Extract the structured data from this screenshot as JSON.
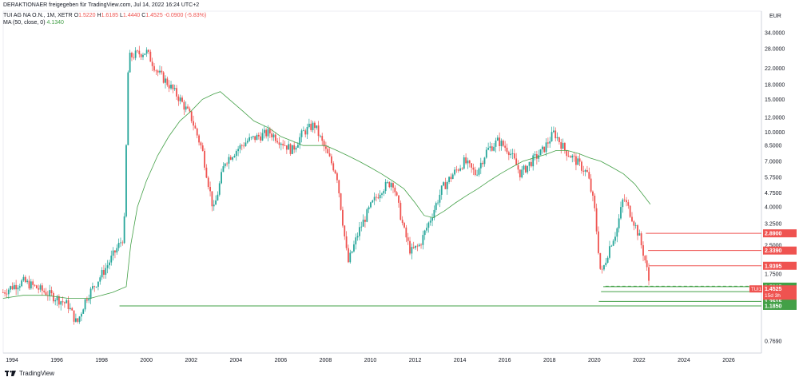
{
  "header": {
    "published": "DERAKTIONAER freigegeben für TradingView.com, Jul 14, 2022 16:24 UTC+2",
    "symbol": "TUI AG NA O.N., 1M, XETR",
    "o_label": "O",
    "o_value": "1.5220",
    "h_label": "H",
    "h_value": "1.6185",
    "l_label": "L",
    "l_value": "1.4440",
    "c_label": "C",
    "c_value": "1.4525",
    "change": "-0.0900 (-5.83%)",
    "ma_label": "MA (50, close, 0)",
    "ma_value": "4.1340"
  },
  "footer": {
    "brand": "TradingView"
  },
  "colors": {
    "up": "#26a69a",
    "down": "#ef5350",
    "ma": "#43a047",
    "red_line": "#ef5350",
    "green_line": "#43a047"
  },
  "chart_data": {
    "type": "candlestick",
    "currency": "EUR",
    "y_scale": "log",
    "ylim": [
      0.7,
      37
    ],
    "x_ticks": [
      "1994",
      "1996",
      "1998",
      "2000",
      "2002",
      "2004",
      "2006",
      "2008",
      "2010",
      "2012",
      "2014",
      "2016",
      "2018",
      "2020",
      "2022",
      "2024",
      "2026"
    ],
    "y_ticks": [
      34,
      28,
      22,
      18,
      15,
      12,
      10,
      8.5,
      7,
      5.75,
      4.75,
      4,
      3.25,
      2.5,
      1.75,
      0.769
    ],
    "y_tick_labels": [
      "34.0000",
      "28.0000",
      "22.0000",
      "18.0000",
      "15.0000",
      "12.0000",
      "10.0000",
      "8.5000",
      "7.0000",
      "5.7500",
      "4.7500",
      "4.0000",
      "3.2500",
      "2.5000",
      "1.7500",
      "0.7690"
    ],
    "ohlc_close_path": [
      [
        1993.6,
        1.4
      ],
      [
        1994.0,
        1.5
      ],
      [
        1994.5,
        1.6
      ],
      [
        1995.0,
        1.5
      ],
      [
        1995.5,
        1.4
      ],
      [
        1996.0,
        1.3
      ],
      [
        1996.5,
        1.2
      ],
      [
        1996.9,
        0.95
      ],
      [
        1997.3,
        1.3
      ],
      [
        1997.8,
        1.6
      ],
      [
        1998.2,
        1.9
      ],
      [
        1998.6,
        2.3
      ],
      [
        1999.0,
        2.8
      ],
      [
        1999.2,
        25
      ],
      [
        1999.5,
        26
      ],
      [
        2000.0,
        27
      ],
      [
        2000.5,
        21
      ],
      [
        2001.0,
        18
      ],
      [
        2001.5,
        15
      ],
      [
        2002.0,
        12
      ],
      [
        2002.5,
        8
      ],
      [
        2003.0,
        3.8
      ],
      [
        2003.5,
        7
      ],
      [
        2004.0,
        8
      ],
      [
        2004.5,
        9
      ],
      [
        2005.0,
        9.5
      ],
      [
        2005.5,
        10
      ],
      [
        2006.0,
        9
      ],
      [
        2006.5,
        8
      ],
      [
        2007.0,
        10
      ],
      [
        2007.5,
        11
      ],
      [
        2008.0,
        8
      ],
      [
        2008.5,
        6
      ],
      [
        2009.0,
        2
      ],
      [
        2009.5,
        3
      ],
      [
        2010.0,
        4
      ],
      [
        2010.5,
        5
      ],
      [
        2011.0,
        5.5
      ],
      [
        2011.5,
        3
      ],
      [
        2011.8,
        2.3
      ],
      [
        2012.2,
        2.5
      ],
      [
        2012.7,
        3.5
      ],
      [
        2013.2,
        5
      ],
      [
        2013.7,
        6
      ],
      [
        2014.2,
        7
      ],
      [
        2014.7,
        6
      ],
      [
        2015.2,
        8
      ],
      [
        2015.7,
        9
      ],
      [
        2016.2,
        8
      ],
      [
        2016.7,
        6
      ],
      [
        2017.2,
        7
      ],
      [
        2017.7,
        8
      ],
      [
        2018.2,
        10
      ],
      [
        2018.7,
        8
      ],
      [
        2019.2,
        7
      ],
      [
        2019.7,
        6
      ],
      [
        2020.0,
        4
      ],
      [
        2020.3,
        1.7
      ],
      [
        2020.7,
        2.5
      ],
      [
        2021.0,
        3
      ],
      [
        2021.3,
        4.5
      ],
      [
        2021.7,
        3.5
      ],
      [
        2022.0,
        2.8
      ],
      [
        2022.3,
        2
      ],
      [
        2022.5,
        1.4525
      ]
    ],
    "ma_series": {
      "name": "MA (50, close, 0)",
      "points": [
        [
          1993.6,
          1.3
        ],
        [
          1994.5,
          1.35
        ],
        [
          1995.5,
          1.35
        ],
        [
          1996.5,
          1.3
        ],
        [
          1997.5,
          1.3
        ],
        [
          1998.5,
          1.4
        ],
        [
          1999.1,
          1.5
        ],
        [
          1999.3,
          2.5
        ],
        [
          1999.6,
          4
        ],
        [
          2000.0,
          5.5
        ],
        [
          2000.5,
          7.5
        ],
        [
          2001.0,
          9.5
        ],
        [
          2001.5,
          11.5
        ],
        [
          2002.0,
          13
        ],
        [
          2002.5,
          15
        ],
        [
          2003.0,
          16
        ],
        [
          2003.3,
          16.5
        ],
        [
          2003.7,
          15
        ],
        [
          2004.3,
          13
        ],
        [
          2004.8,
          11.5
        ],
        [
          2005.5,
          10.5
        ],
        [
          2006.0,
          9.5
        ],
        [
          2006.5,
          9
        ],
        [
          2007.0,
          8.5
        ],
        [
          2007.5,
          8.5
        ],
        [
          2008.0,
          8.5
        ],
        [
          2008.5,
          8
        ],
        [
          2009.0,
          7.5
        ],
        [
          2009.5,
          7
        ],
        [
          2010.0,
          6.5
        ],
        [
          2010.5,
          6
        ],
        [
          2011.0,
          5.5
        ],
        [
          2011.5,
          5
        ],
        [
          2012.0,
          4.2
        ],
        [
          2012.4,
          3.6
        ],
        [
          2012.8,
          3.5
        ],
        [
          2013.3,
          3.8
        ],
        [
          2013.8,
          4.2
        ],
        [
          2014.3,
          4.6
        ],
        [
          2014.8,
          5
        ],
        [
          2015.3,
          5.5
        ],
        [
          2015.8,
          6
        ],
        [
          2016.3,
          6.5
        ],
        [
          2016.8,
          7
        ],
        [
          2017.3,
          7.3
        ],
        [
          2017.8,
          7.6
        ],
        [
          2018.3,
          8
        ],
        [
          2018.8,
          8
        ],
        [
          2019.3,
          7.7
        ],
        [
          2019.8,
          7.3
        ],
        [
          2020.3,
          7
        ],
        [
          2020.8,
          6.5
        ],
        [
          2021.3,
          6
        ],
        [
          2021.8,
          5.3
        ],
        [
          2022.2,
          4.6
        ],
        [
          2022.5,
          4.134
        ]
      ]
    },
    "red_levels": [
      {
        "value": 2.89,
        "label": "2.8900",
        "from": 2022.3
      },
      {
        "value": 2.339,
        "label": "2.3390",
        "from": 2022.4
      },
      {
        "value": 1.9395,
        "label": "1.9395",
        "from": 2022.45
      }
    ],
    "green_levels": [
      {
        "value": 1.5015,
        "label": "1.5015",
        "from": 2020.4
      },
      {
        "value": 1.412,
        "label": "1.4120",
        "from": 2020.3
      },
      {
        "value": 1.2515,
        "label": "1.2515",
        "from": 2020.2
      },
      {
        "value": 1.185,
        "label": "1.1850",
        "from": 1998.8
      }
    ],
    "extra_labels": [
      {
        "value": 1.452,
        "label": "1.4520",
        "color": "#43a047"
      }
    ],
    "current": {
      "symbol": "TUI1",
      "price": "1.4525",
      "countdown": "15d 3h"
    }
  }
}
